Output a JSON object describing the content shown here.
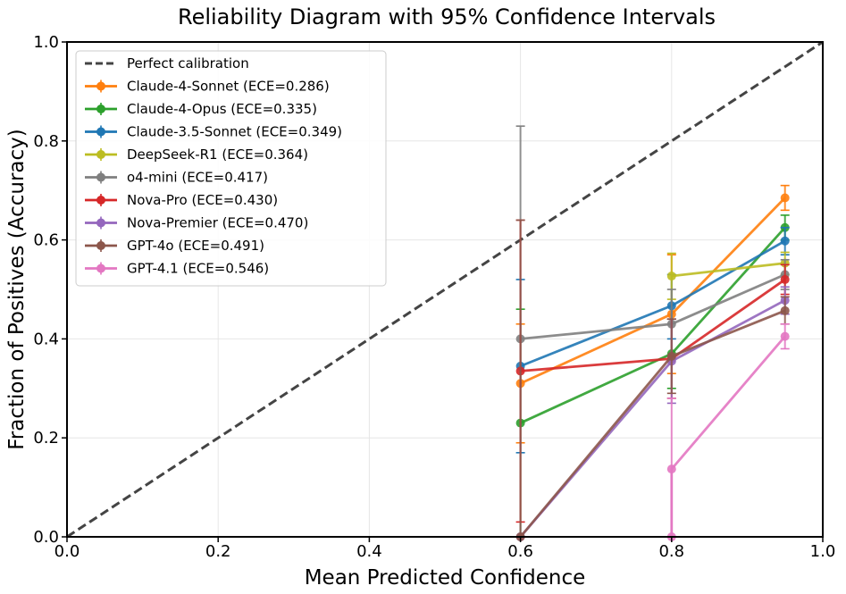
{
  "chart_data": {
    "type": "line",
    "title": "Reliability Diagram with 95% Confidence Intervals",
    "xlabel": "Mean Predicted Confidence",
    "ylabel": "Fraction of Positives (Accuracy)",
    "xlim": [
      0.0,
      1.0
    ],
    "ylim": [
      0.0,
      1.0
    ],
    "xticks": [
      "0.0",
      "0.2",
      "0.4",
      "0.6",
      "0.8",
      "1.0"
    ],
    "yticks": [
      "0.0",
      "0.2",
      "0.4",
      "0.6",
      "0.8",
      "1.0"
    ],
    "grid": true,
    "legend_position": "top-left",
    "reference_line": {
      "name": "Perfect calibration",
      "x": [
        0.0,
        1.0
      ],
      "y": [
        0.0,
        1.0
      ],
      "color": "#444444",
      "style": "dashed"
    },
    "series": [
      {
        "name": "Claude-4-Sonnet (ECE=0.286)",
        "color": "#ff7f0e",
        "x": [
          0.6,
          0.8,
          0.95
        ],
        "y": [
          0.31,
          0.45,
          0.685
        ],
        "err_low": [
          0.19,
          0.33,
          0.66
        ],
        "err_high": [
          0.43,
          0.57,
          0.71
        ]
      },
      {
        "name": "Claude-4-Opus (ECE=0.335)",
        "color": "#2ca02c",
        "x": [
          0.6,
          0.8,
          0.95
        ],
        "y": [
          0.23,
          0.37,
          0.625
        ],
        "err_low": [
          0.0,
          0.3,
          0.6
        ],
        "err_high": [
          0.46,
          0.44,
          0.65
        ]
      },
      {
        "name": "Claude-3.5-Sonnet (ECE=0.349)",
        "color": "#1f77b4",
        "x": [
          0.6,
          0.8,
          0.95
        ],
        "y": [
          0.345,
          0.467,
          0.598
        ],
        "err_low": [
          0.17,
          0.4,
          0.57
        ],
        "err_high": [
          0.52,
          0.53,
          0.625
        ]
      },
      {
        "name": "DeepSeek-R1 (ECE=0.364)",
        "color": "#bcbd22",
        "x": [
          0.8,
          0.95
        ],
        "y": [
          0.527,
          0.553
        ],
        "err_low": [
          0.48,
          0.53
        ],
        "err_high": [
          0.573,
          0.575
        ]
      },
      {
        "name": "o4-mini (ECE=0.417)",
        "color": "#7f7f7f",
        "x": [
          0.6,
          0.8,
          0.95
        ],
        "y": [
          0.4,
          0.43,
          0.53
        ],
        "err_low": [
          0.0,
          0.36,
          0.5
        ],
        "err_high": [
          0.83,
          0.5,
          0.56
        ]
      },
      {
        "name": "Nova-Pro (ECE=0.430)",
        "color": "#d62728",
        "x": [
          0.6,
          0.8,
          0.95
        ],
        "y": [
          0.335,
          0.36,
          0.52
        ],
        "err_low": [
          0.03,
          0.28,
          0.49
        ],
        "err_high": [
          0.64,
          0.44,
          0.55
        ]
      },
      {
        "name": "Nova-Premier (ECE=0.470)",
        "color": "#9467bd",
        "x": [
          0.6,
          0.8,
          0.95
        ],
        "y": [
          0.0,
          0.355,
          0.478
        ],
        "err_low": [
          0.0,
          0.27,
          0.45
        ],
        "err_high": [
          0.0,
          0.44,
          0.505
        ]
      },
      {
        "name": "GPT-4o (ECE=0.491)",
        "color": "#8c564b",
        "x": [
          0.6,
          0.8,
          0.95
        ],
        "y": [
          0.0,
          0.365,
          0.457
        ],
        "err_low": [
          0.0,
          0.29,
          0.43
        ],
        "err_high": [
          0.64,
          0.44,
          0.485
        ]
      },
      {
        "name": "GPT-4.1 (ECE=0.546)",
        "color": "#e377c2",
        "x": [
          0.8,
          0.8,
          0.95
        ],
        "y": [
          0.0,
          0.137,
          0.405
        ],
        "err_low": [
          0.0,
          0.0,
          0.38
        ],
        "err_high": [
          0.0,
          0.28,
          0.43
        ]
      }
    ]
  }
}
